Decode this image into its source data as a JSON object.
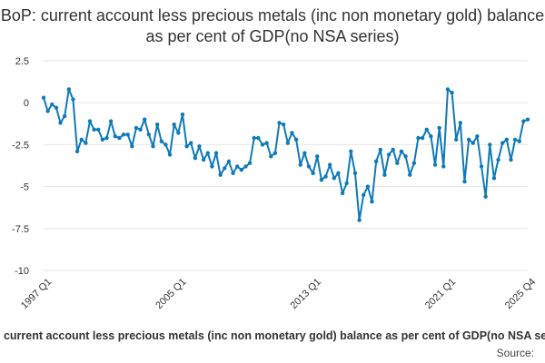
{
  "chart_data": {
    "type": "line",
    "title": "BoP: current account less precious metals (inc non monetary gold) balance as per cent of GDP(no NSA series)",
    "series": [
      {
        "name": "BoP: current account less precious metals (inc non monetary gold) balance as per cent of GDP(no NSA series)",
        "color": "#0f7ab8",
        "values": [
          0.3,
          -0.5,
          -0.1,
          -0.3,
          -1.2,
          -0.8,
          0.8,
          0.2,
          -2.9,
          -2.2,
          -2.4,
          -1.1,
          -1.6,
          -1.6,
          -2.2,
          -2.1,
          -1.1,
          -2.0,
          -2.1,
          -1.9,
          -1.9,
          -2.6,
          -1.5,
          -1.6,
          -1.0,
          -1.9,
          -2.6,
          -1.3,
          -2.3,
          -2.5,
          -3.1,
          -1.3,
          -1.8,
          -0.7,
          -2.6,
          -2.4,
          -3.3,
          -2.6,
          -3.4,
          -3.0,
          -3.8,
          -3.0,
          -4.3,
          -3.9,
          -3.5,
          -4.2,
          -3.8,
          -4.0,
          -3.8,
          -3.6,
          -2.1,
          -2.1,
          -2.5,
          -2.4,
          -3.2,
          -3.0,
          -1.2,
          -1.3,
          -2.4,
          -1.8,
          -2.2,
          -3.7,
          -3.0,
          -3.8,
          -4.2,
          -3.2,
          -4.6,
          -4.4,
          -3.7,
          -4.5,
          -4.2,
          -5.4,
          -4.8,
          -2.9,
          -4.2,
          -7.0,
          -5.5,
          -5.0,
          -5.9,
          -3.5,
          -2.8,
          -4.3,
          -3.1,
          -2.8,
          -3.6,
          -2.9,
          -3.2,
          -4.3,
          -3.6,
          -2.1,
          -2.1,
          -1.6,
          -2.0,
          -3.7,
          -1.5,
          -3.8,
          0.8,
          0.6,
          -2.2,
          -1.2,
          -4.7,
          -2.2,
          -2.4,
          -2.0,
          -3.8,
          -5.6,
          -2.5,
          -4.5,
          -3.4,
          -2.4,
          -2.2,
          -3.4,
          -2.2,
          -2.3,
          -1.1,
          -1.0
        ]
      }
    ],
    "x_tick_labels": [
      "1997 Q1",
      "2005 Q1",
      "2013 Q1",
      "2021 Q1",
      "2025 Q4"
    ],
    "y_ticks": [
      "2.5",
      "0",
      "-2.5",
      "-5",
      "-7.5",
      "-10"
    ],
    "ylim": [
      -10,
      2.5
    ],
    "grid": true,
    "legend_position": "bottom-center",
    "source": "Source:"
  }
}
